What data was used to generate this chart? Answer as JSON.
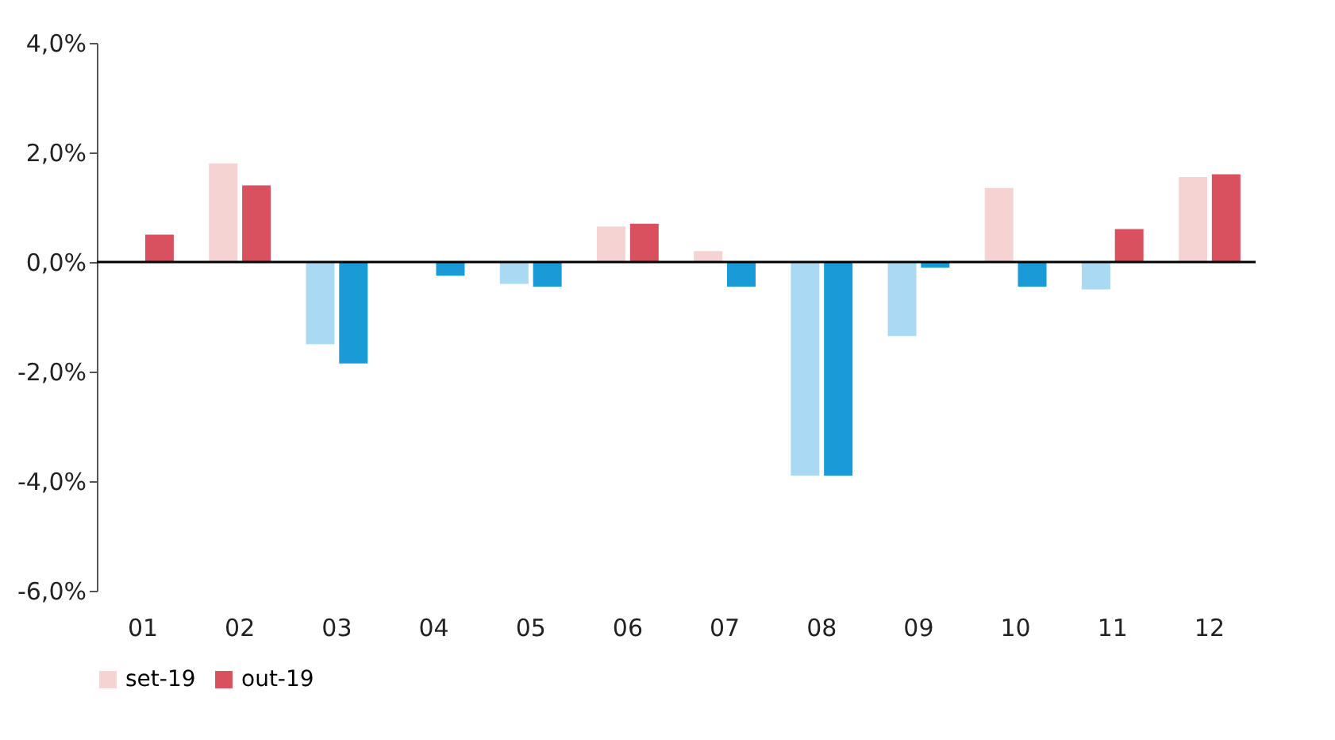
{
  "chart_data": {
    "type": "bar",
    "categories": [
      "01",
      "02",
      "03",
      "04",
      "05",
      "06",
      "07",
      "08",
      "09",
      "10",
      "11",
      "12"
    ],
    "series": [
      {
        "name": "set-19",
        "color": "#f6d3d3",
        "colors": [
          "#aad9f3",
          "#f6d3d3",
          "#aad9f3",
          "#aad9f3",
          "#aad9f3",
          "#f6d3d3",
          "#f6d3d3",
          "#aad9f3",
          "#aad9f3",
          "#f6d3d3",
          "#aad9f3",
          "#f6d3d3"
        ],
        "values": [
          0.0,
          1.8,
          -1.5,
          0.0,
          -0.4,
          0.65,
          0.2,
          -3.9,
          -1.35,
          1.35,
          -0.5,
          1.55
        ]
      },
      {
        "name": "out-19",
        "color": "#d9505f",
        "colors": [
          "#d9505f",
          "#d9505f",
          "#1b9ad8",
          "#1b9ad8",
          "#1b9ad8",
          "#d9505f",
          "#1b9ad8",
          "#1b9ad8",
          "#1b9ad8",
          "#1b9ad8",
          "#d9505f",
          "#d9505f"
        ],
        "values": [
          0.5,
          1.4,
          -1.85,
          -0.25,
          -0.45,
          0.7,
          -0.45,
          -3.9,
          -0.1,
          -0.45,
          0.6,
          1.6
        ]
      }
    ],
    "ylim": [
      -6,
      4
    ],
    "yticks": [
      {
        "value": -6,
        "label": "-6,0%"
      },
      {
        "value": -4,
        "label": "-4,0%"
      },
      {
        "value": -2,
        "label": "-2,0%"
      },
      {
        "value": 0,
        "label": "0,0%"
      },
      {
        "value": 2,
        "label": "2,0%"
      },
      {
        "value": 4,
        "label": "4,0%"
      }
    ],
    "ref_lines": [
      {
        "axis": "y",
        "value": 0,
        "color": "#000000"
      }
    ],
    "grid": false,
    "legend": "bottom"
  }
}
